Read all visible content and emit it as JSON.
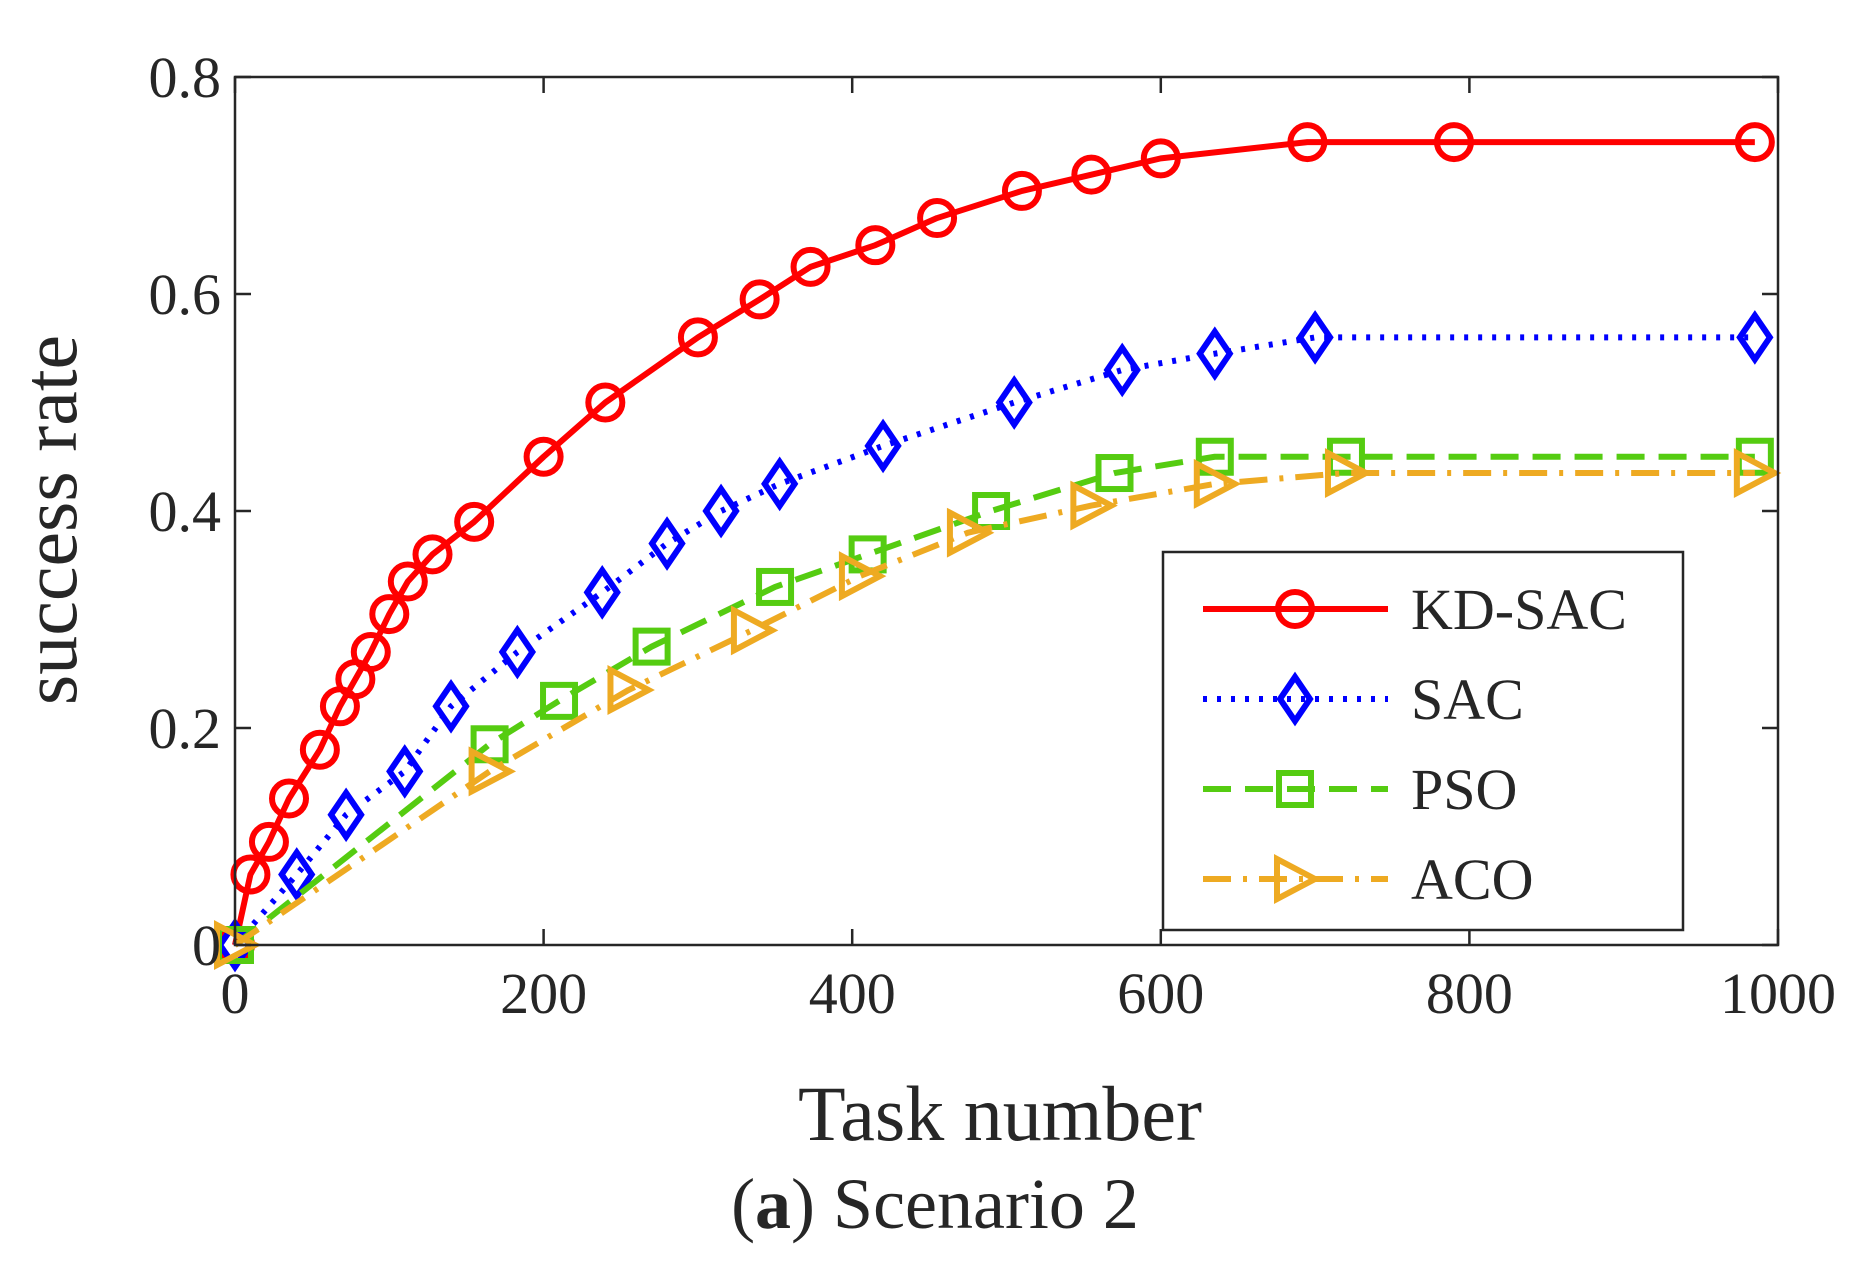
{
  "chart_data": {
    "type": "line",
    "xlabel": "Task number",
    "ylabel": "success rate",
    "caption_prefix": "(",
    "caption_letter": "a",
    "caption_rest": ") Scenario 2",
    "xlim": [
      0,
      1000
    ],
    "ylim": [
      0,
      0.8
    ],
    "xticks": [
      0,
      200,
      400,
      600,
      800,
      1000
    ],
    "yticks": [
      0,
      0.2,
      0.4,
      0.6,
      0.8
    ],
    "xtick_labels": [
      "0",
      "200",
      "400",
      "600",
      "800",
      "1000"
    ],
    "ytick_labels": [
      "0",
      "0.2",
      "0.4",
      "0.6",
      "0.8"
    ],
    "grid": false,
    "legend_position": "bottom-right",
    "series": [
      {
        "name": "KD-SAC",
        "color": "#ff0000",
        "dash": "solid",
        "marker": "circle",
        "x": [
          0,
          10,
          22,
          35,
          55,
          68,
          78,
          88,
          100,
          112,
          128,
          155,
          200,
          240,
          300,
          340,
          373,
          415,
          455,
          510,
          555,
          600,
          695,
          790,
          985
        ],
        "y": [
          0,
          0.065,
          0.095,
          0.135,
          0.18,
          0.22,
          0.245,
          0.27,
          0.305,
          0.335,
          0.36,
          0.39,
          0.45,
          0.5,
          0.56,
          0.595,
          0.625,
          0.645,
          0.67,
          0.695,
          0.71,
          0.725,
          0.74,
          0.74,
          0.74
        ]
      },
      {
        "name": "SAC",
        "color": "#0000ff",
        "dash": "dotted",
        "marker": "diamond",
        "x": [
          0,
          40,
          72,
          110,
          140,
          183,
          238,
          280,
          315,
          353,
          420,
          505,
          575,
          635,
          700,
          985
        ],
        "y": [
          0,
          0.065,
          0.12,
          0.16,
          0.22,
          0.27,
          0.325,
          0.37,
          0.4,
          0.425,
          0.46,
          0.5,
          0.53,
          0.545,
          0.56,
          0.56
        ]
      },
      {
        "name": "PSO",
        "color": "#55cc11",
        "dash": "dashed",
        "marker": "square",
        "x": [
          0,
          165,
          210,
          270,
          350,
          410,
          490,
          570,
          635,
          720,
          985
        ],
        "y": [
          0,
          0.185,
          0.225,
          0.275,
          0.33,
          0.36,
          0.4,
          0.435,
          0.45,
          0.45,
          0.45
        ]
      },
      {
        "name": "ACO",
        "color": "#eeaa22",
        "dash": "dashdot",
        "marker": "triangle-right",
        "x": [
          0,
          165,
          255,
          335,
          405,
          475,
          555,
          635,
          720,
          985
        ],
        "y": [
          0,
          0.16,
          0.235,
          0.29,
          0.34,
          0.38,
          0.405,
          0.425,
          0.435,
          0.435
        ]
      }
    ]
  }
}
